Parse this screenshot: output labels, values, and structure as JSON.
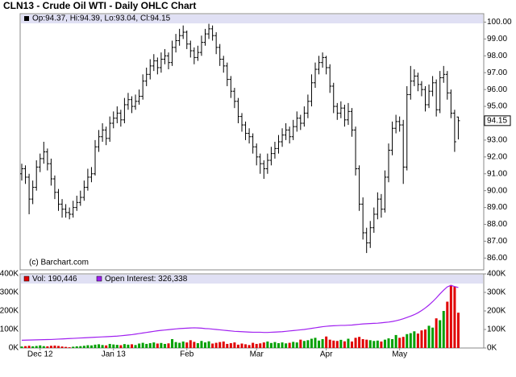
{
  "chart_data": [
    {
      "type": "ohlc",
      "title": "CLN13 - Crude Oil WTI - Daily OHLC Chart",
      "legend_text": "Op:94.37, Hi:94.39, Lo:93.04, Cl:94.15",
      "credit": "(c) Barchart.com",
      "color": "#000000",
      "open": [
        91.0,
        91.3,
        90.8,
        89.5,
        90.2,
        91.4,
        91.9,
        92.3,
        91.6,
        90.7,
        89.9,
        89.2,
        88.9,
        88.7,
        88.6,
        89.0,
        89.3,
        89.6,
        90.2,
        90.8,
        91.0,
        92.6,
        93.2,
        93.6,
        93.1,
        94.0,
        94.3,
        94.6,
        94.2,
        95.1,
        95.4,
        95.0,
        95.3,
        95.6,
        96.5,
        96.9,
        97.4,
        97.7,
        97.3,
        97.8,
        98.0,
        97.6,
        98.5,
        98.9,
        99.2,
        99.4,
        98.7,
        98.3,
        97.9,
        98.2,
        98.8,
        99.3,
        99.6,
        99.2,
        98.5,
        97.8,
        97.4,
        96.6,
        95.9,
        95.3,
        94.4,
        93.9,
        93.4,
        93.2,
        92.6,
        92.0,
        91.6,
        91.3,
        91.8,
        92.2,
        92.5,
        92.9,
        93.3,
        93.6,
        93.2,
        93.8,
        94.3,
        94.0,
        94.6,
        95.3,
        96.4,
        97.2,
        97.6,
        97.9,
        97.3,
        96.2,
        95.0,
        94.6,
        94.9,
        94.2,
        94.7,
        93.6,
        91.3,
        89.2,
        87.5,
        86.9,
        87.8,
        88.6,
        89.5,
        88.9,
        90.8,
        92.4,
        93.7,
        94.1,
        93.9,
        91.4,
        95.7,
        96.5,
        96.8,
        96.3,
        96.0,
        95.1,
        95.9,
        96.4,
        94.8,
        96.7,
        96.9,
        95.8,
        94.6,
        94.37
      ],
      "high": [
        91.6,
        91.5,
        91.0,
        90.6,
        91.8,
        92.2,
        92.9,
        92.5,
        91.9,
        90.9,
        90.1,
        89.5,
        89.2,
        89.0,
        89.4,
        89.7,
        90.0,
        90.6,
        91.3,
        91.4,
        93.0,
        93.6,
        94.0,
        93.8,
        94.4,
        94.7,
        95.0,
        94.8,
        95.5,
        95.8,
        95.6,
        95.7,
        96.0,
        96.9,
        97.3,
        97.8,
        98.1,
        97.9,
        98.2,
        98.4,
        98.2,
        98.9,
        99.3,
        99.6,
        99.8,
        99.5,
        98.9,
        98.5,
        98.6,
        99.2,
        99.6,
        99.9,
        99.8,
        99.4,
        98.7,
        98.0,
        97.6,
        96.8,
        96.1,
        95.5,
        94.6,
        94.1,
        93.7,
        93.4,
        92.8,
        92.2,
        91.8,
        92.2,
        92.6,
        92.9,
        93.3,
        93.7,
        94.0,
        93.8,
        94.2,
        94.7,
        94.5,
        95.0,
        95.7,
        96.9,
        97.6,
        98.0,
        98.2,
        98.0,
        97.5,
        96.4,
        95.2,
        95.3,
        95.1,
        95.2,
        94.9,
        93.8,
        91.5,
        89.6,
        87.8,
        88.2,
        89.0,
        89.9,
        89.8,
        91.2,
        92.8,
        94.1,
        94.5,
        94.4,
        94.2,
        96.2,
        97.4,
        97.2,
        97.0,
        96.5,
        96.2,
        96.3,
        96.8,
        96.6,
        97.1,
        97.4,
        97.1,
        96.0,
        94.8,
        94.39
      ],
      "low": [
        90.6,
        90.4,
        88.6,
        89.2,
        90.0,
        91.1,
        91.6,
        91.2,
        90.3,
        89.5,
        88.8,
        88.4,
        88.4,
        88.3,
        88.4,
        88.8,
        89.1,
        89.4,
        90.0,
        90.5,
        90.9,
        92.3,
        92.9,
        92.7,
        92.9,
        93.7,
        94.0,
        93.8,
        94.0,
        94.8,
        94.6,
        94.8,
        95.1,
        95.4,
        96.2,
        96.6,
        97.1,
        96.9,
        97.0,
        97.5,
        97.2,
        97.4,
        98.2,
        98.6,
        99.0,
        98.4,
        97.9,
        97.5,
        97.7,
        98.0,
        98.6,
        99.0,
        98.9,
        98.1,
        97.4,
        97.0,
        96.2,
        95.5,
        94.9,
        94.0,
        93.5,
        93.0,
        92.8,
        92.2,
        91.5,
        91.0,
        90.7,
        91.0,
        91.5,
        91.9,
        92.2,
        92.6,
        93.0,
        92.8,
        93.0,
        93.5,
        93.6,
        93.8,
        94.3,
        95.0,
        96.1,
        96.9,
        97.3,
        96.9,
        95.8,
        94.6,
        94.2,
        94.3,
        93.8,
        93.9,
        93.2,
        90.9,
        88.8,
        87.1,
        86.3,
        86.6,
        87.5,
        88.3,
        88.4,
        88.7,
        90.5,
        92.1,
        93.4,
        93.5,
        90.4,
        91.2,
        95.4,
        96.2,
        95.9,
        95.6,
        94.7,
        94.9,
        95.6,
        94.4,
        94.6,
        96.4,
        95.4,
        94.3,
        92.3,
        93.04
      ],
      "close": [
        91.3,
        90.8,
        89.5,
        90.2,
        91.4,
        91.9,
        92.3,
        91.6,
        90.7,
        89.9,
        89.2,
        88.9,
        88.7,
        88.6,
        89.0,
        89.3,
        89.6,
        90.2,
        90.8,
        91.0,
        92.6,
        93.2,
        93.6,
        93.1,
        94.0,
        94.3,
        94.6,
        94.2,
        95.1,
        95.4,
        95.0,
        95.3,
        95.6,
        96.5,
        96.9,
        97.4,
        97.7,
        97.3,
        97.8,
        98.0,
        97.6,
        98.5,
        98.9,
        99.2,
        99.4,
        98.7,
        98.3,
        97.9,
        98.2,
        98.8,
        99.3,
        99.6,
        99.2,
        98.5,
        97.8,
        97.4,
        96.6,
        95.9,
        95.3,
        94.4,
        93.9,
        93.4,
        93.2,
        92.6,
        92.0,
        91.6,
        91.3,
        91.8,
        92.2,
        92.5,
        92.9,
        93.3,
        93.6,
        93.2,
        93.8,
        94.3,
        94.0,
        94.6,
        95.3,
        96.4,
        97.2,
        97.6,
        97.9,
        97.3,
        96.2,
        95.0,
        94.6,
        94.9,
        94.2,
        94.7,
        93.6,
        91.3,
        89.2,
        87.5,
        86.9,
        87.8,
        88.6,
        89.5,
        88.9,
        90.8,
        92.4,
        93.7,
        94.1,
        93.9,
        91.4,
        95.7,
        96.5,
        96.8,
        96.3,
        96.0,
        95.1,
        95.9,
        96.4,
        94.8,
        96.7,
        96.9,
        95.8,
        94.6,
        92.9,
        94.15
      ],
      "ylim": [
        85.3,
        100.5
      ],
      "yticks": [
        {
          "value": 86,
          "label": "86.00"
        },
        {
          "value": 87,
          "label": "87.00"
        },
        {
          "value": 88,
          "label": "88.00"
        },
        {
          "value": 89,
          "label": "89.00"
        },
        {
          "value": 90,
          "label": "90.00"
        },
        {
          "value": 91,
          "label": "91.00"
        },
        {
          "value": 92,
          "label": "92.00"
        },
        {
          "value": 93,
          "label": "93.00"
        },
        {
          "value": 94,
          "label": "94.00"
        },
        {
          "value": 95,
          "label": "95.00"
        },
        {
          "value": 96,
          "label": "96.00"
        },
        {
          "value": 97,
          "label": "97.00"
        },
        {
          "value": 98,
          "label": "98.00"
        },
        {
          "value": 99,
          "label": "99.00"
        },
        {
          "value": 100,
          "label": "100.00"
        }
      ]
    },
    {
      "type": "volume",
      "categories": [
        null,
        null,
        null,
        null,
        null,
        "Dec 12",
        null,
        null,
        null,
        null,
        null,
        null,
        null,
        null,
        null,
        null,
        null,
        null,
        null,
        null,
        null,
        null,
        null,
        null,
        null,
        "Jan 13",
        null,
        null,
        null,
        null,
        null,
        null,
        null,
        null,
        null,
        null,
        null,
        null,
        null,
        null,
        null,
        null,
        null,
        null,
        null,
        "Feb",
        null,
        null,
        null,
        null,
        null,
        null,
        null,
        null,
        null,
        null,
        null,
        null,
        null,
        null,
        null,
        null,
        null,
        null,
        "Mar",
        null,
        null,
        null,
        null,
        null,
        null,
        null,
        null,
        null,
        null,
        null,
        null,
        null,
        null,
        null,
        null,
        null,
        null,
        "Apr",
        null,
        null,
        null,
        null,
        null,
        null,
        null,
        null,
        null,
        null,
        null,
        null,
        null,
        null,
        null,
        null,
        null,
        null,
        null,
        "May",
        null,
        null,
        null,
        null,
        null,
        null,
        null,
        null,
        null,
        null,
        null,
        null,
        null,
        null,
        null,
        null
      ],
      "up_color": "#00a000",
      "down_color": "#e00000",
      "series": [
        {
          "name": "Vol: 190,446",
          "color": "#e00000",
          "values": [
            8000,
            10000,
            12000,
            9000,
            11000,
            14000,
            10000,
            9000,
            12000,
            13000,
            11000,
            8000,
            6000,
            4000,
            7000,
            9000,
            10000,
            12000,
            15000,
            14000,
            18000,
            20000,
            16000,
            14000,
            22000,
            19000,
            17000,
            15000,
            21000,
            18000,
            20000,
            16000,
            24000,
            28000,
            22000,
            26000,
            30000,
            24000,
            27000,
            22000,
            25000,
            48000,
            32000,
            28000,
            35000,
            30000,
            42000,
            33000,
            26000,
            38000,
            30000,
            36000,
            24000,
            28000,
            32000,
            35000,
            22000,
            26000,
            30000,
            18000,
            24000,
            20000,
            16000,
            28000,
            22000,
            25000,
            30000,
            35000,
            27000,
            32000,
            26000,
            30000,
            25000,
            28000,
            33000,
            30000,
            45000,
            38000,
            42000,
            50000,
            55000,
            40000,
            48000,
            62000,
            45000,
            40000,
            38000,
            44000,
            36000,
            50000,
            35000,
            55000,
            60000,
            48000,
            45000,
            42000,
            38000,
            40000,
            35000,
            45000,
            52000,
            48000,
            70000,
            55000,
            60000,
            75000,
            80000,
            90000,
            78000,
            95000,
            100000,
            120000,
            110000,
            160000,
            150000,
            200000,
            250000,
            340000,
            330000,
            190446
          ]
        },
        {
          "name": "Open Interest: 326,338",
          "color": "#a020f0",
          "values": [
            42000,
            42500,
            43000,
            43500,
            44000,
            44500,
            45000,
            45500,
            46000,
            47000,
            48000,
            49000,
            50000,
            51000,
            52000,
            53000,
            54000,
            55000,
            56000,
            57000,
            58000,
            59000,
            60000,
            61000,
            62000,
            63000,
            64000,
            66000,
            68000,
            70000,
            72000,
            75000,
            78000,
            81000,
            84000,
            87000,
            90000,
            93000,
            95000,
            97000,
            99000,
            101000,
            103000,
            105000,
            106000,
            107000,
            108000,
            109000,
            108000,
            107000,
            105000,
            104000,
            102000,
            100000,
            98000,
            96000,
            94000,
            92000,
            90000,
            89000,
            88000,
            87000,
            86000,
            85000,
            85000,
            85000,
            84000,
            84000,
            85000,
            86000,
            87000,
            88000,
            90000,
            92000,
            94000,
            96000,
            98000,
            100000,
            103000,
            106000,
            109000,
            112000,
            115000,
            117000,
            119000,
            120000,
            121000,
            122000,
            122000,
            123000,
            124000,
            126000,
            128000,
            130000,
            131000,
            132000,
            133000,
            134000,
            136000,
            138000,
            140000,
            143000,
            147000,
            152000,
            158000,
            165000,
            172000,
            180000,
            190000,
            202000,
            216000,
            232000,
            250000,
            270000,
            292000,
            312000,
            330000,
            338000,
            332000,
            326338
          ]
        }
      ],
      "ylim": [
        0,
        400000
      ],
      "yticks": [
        {
          "value": 0,
          "label": "0K"
        },
        {
          "value": 100000,
          "label": "100K"
        },
        {
          "value": 200000,
          "label": "200K"
        },
        {
          "value": 300000,
          "label": "300K"
        },
        {
          "value": 400000,
          "label": "400K"
        }
      ]
    }
  ]
}
